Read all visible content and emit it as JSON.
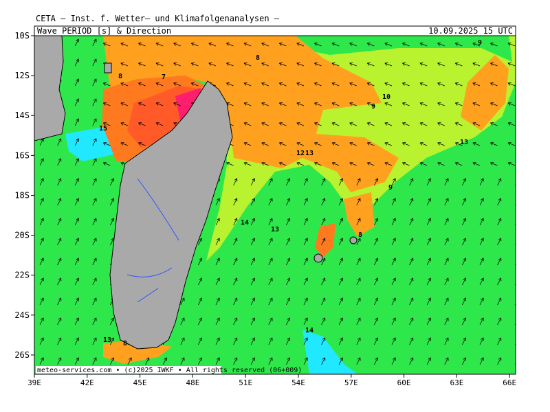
{
  "header": {
    "institute": "CETA – Inst. f. Wetter– und Klimafolgenanalysen –",
    "title": "Wave_PERIOD_[s]_&_Direction",
    "valid": "10.09.2025 15 UTC"
  },
  "map": {
    "lat_ticks": [
      {
        "value": -10,
        "label": "10S"
      },
      {
        "value": -12,
        "label": "12S"
      },
      {
        "value": -14,
        "label": "14S"
      },
      {
        "value": -16,
        "label": "16S"
      },
      {
        "value": -18,
        "label": "18S"
      },
      {
        "value": -20,
        "label": "20S"
      },
      {
        "value": -22,
        "label": "22S"
      },
      {
        "value": -24,
        "label": "24S"
      },
      {
        "value": -26,
        "label": "26S"
      }
    ],
    "lon_ticks": [
      {
        "value": 39,
        "label": "39E"
      },
      {
        "value": 42,
        "label": "42E"
      },
      {
        "value": 45,
        "label": "45E"
      },
      {
        "value": 48,
        "label": "48E"
      },
      {
        "value": 51,
        "label": "51E"
      },
      {
        "value": 54,
        "label": "54E"
      },
      {
        "value": 57,
        "label": "57E"
      },
      {
        "value": 60,
        "label": "60E"
      },
      {
        "value": 63,
        "label": "63E"
      },
      {
        "value": 66,
        "label": "66E"
      }
    ],
    "contour_labels": [
      8,
      7,
      8,
      15,
      9,
      10,
      9,
      12,
      13,
      13,
      9,
      14,
      13,
      8,
      14,
      13,
      8
    ],
    "footer": "meteo-services.com • (c)2025 IWKF • All rights reserved (06+009)"
  }
}
